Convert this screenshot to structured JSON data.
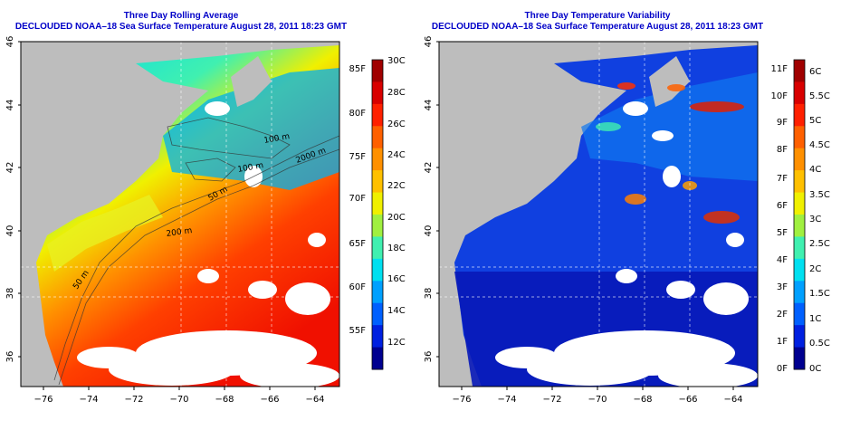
{
  "panels": [
    {
      "title_line1": "Three Day Rolling Average",
      "title_line2": "DECLOUDED NOAA–18 Sea Surface Temperature August 28, 2011 18:23 GMT",
      "lat_ticks": [
        "36",
        "38",
        "40",
        "42",
        "44",
        "46"
      ],
      "lon_ticks": [
        "−76",
        "−74",
        "−72",
        "−70",
        "−68",
        "−66",
        "−64"
      ],
      "contour_labels": [
        "100 m",
        "100 m",
        "2000 m",
        "50 m",
        "200 m",
        "50 m"
      ],
      "colorbar": {
        "f_labels": [
          "85F",
          "80F",
          "75F",
          "70F",
          "65F",
          "60F",
          "55F"
        ],
        "c_labels": [
          "30C",
          "28C",
          "26C",
          "24C",
          "22C",
          "20C",
          "18C",
          "16C",
          "14C",
          "12C"
        ],
        "colors": [
          "#a00000",
          "#d80000",
          "#ff2000",
          "#ff6000",
          "#ff9000",
          "#ffc000",
          "#f0f000",
          "#a0f040",
          "#40f0b0",
          "#00e0f0",
          "#00a0ff",
          "#0060ff",
          "#0020e0",
          "#000090"
        ]
      }
    },
    {
      "title_line1": "Three Day Temperature Variability",
      "title_line2": "DECLOUDED NOAA–18 Sea Surface Temperature August 28, 2011 18:23 GMT",
      "lat_ticks": [
        "36",
        "38",
        "40",
        "42",
        "44",
        "46"
      ],
      "lon_ticks": [
        "−76",
        "−74",
        "−72",
        "−70",
        "−68",
        "−66",
        "−64"
      ],
      "colorbar": {
        "f_labels": [
          "11F",
          "10F",
          "9F",
          "8F",
          "7F",
          "6F",
          "5F",
          "4F",
          "3F",
          "2F",
          "1F",
          "0F"
        ],
        "c_labels": [
          "6C",
          "5.5C",
          "5C",
          "4.5C",
          "4C",
          "3.5C",
          "3C",
          "2.5C",
          "2C",
          "1.5C",
          "1C",
          "0.5C",
          "0C"
        ],
        "colors": [
          "#a00000",
          "#d80000",
          "#ff2000",
          "#ff6000",
          "#ff9000",
          "#ffc000",
          "#f0f000",
          "#a0f040",
          "#40f0b0",
          "#00e0f0",
          "#00a0ff",
          "#0060ff",
          "#0020e0",
          "#000090"
        ]
      }
    }
  ]
}
